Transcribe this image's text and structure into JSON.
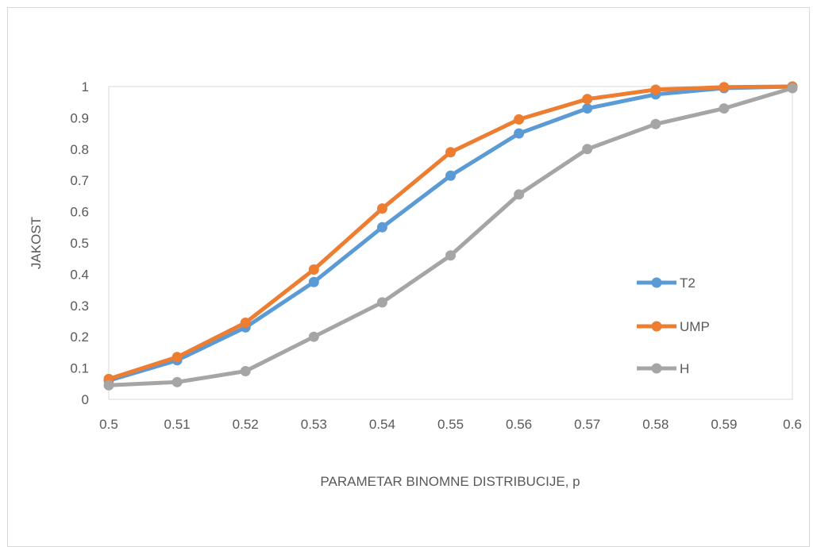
{
  "chart_data": {
    "type": "line",
    "title": "",
    "xlabel": "PARAMETAR BINOMNE DISTRIBUCIJE, p",
    "ylabel": "JAKOST",
    "x": [
      0.5,
      0.51,
      0.52,
      0.53,
      0.54,
      0.55,
      0.56,
      0.57,
      0.58,
      0.59,
      0.6
    ],
    "x_tick_labels": [
      "0.5",
      "0.51",
      "0.52",
      "0.53",
      "0.54",
      "0.55",
      "0.56",
      "0.57",
      "0.58",
      "0.59",
      "0.6"
    ],
    "y_tick_labels": [
      "0",
      "0.1",
      "0.2",
      "0.3",
      "0.4",
      "0.5",
      "0.6",
      "0.7",
      "0.8",
      "0.9",
      "1"
    ],
    "xlim": [
      0.5,
      0.6
    ],
    "ylim": [
      0,
      1
    ],
    "grid": false,
    "legend_position": "right",
    "series": [
      {
        "name": "T2",
        "color": "#5b9bd5",
        "values": [
          0.06,
          0.125,
          0.23,
          0.375,
          0.55,
          0.715,
          0.85,
          0.93,
          0.975,
          0.995,
          1.0
        ]
      },
      {
        "name": "UMP",
        "color": "#ed7d31",
        "values": [
          0.065,
          0.135,
          0.245,
          0.415,
          0.61,
          0.79,
          0.895,
          0.96,
          0.99,
          0.998,
          1.0
        ]
      },
      {
        "name": "H",
        "color": "#a5a5a5",
        "values": [
          0.045,
          0.055,
          0.09,
          0.2,
          0.31,
          0.46,
          0.655,
          0.8,
          0.88,
          0.93,
          0.995
        ]
      }
    ]
  }
}
